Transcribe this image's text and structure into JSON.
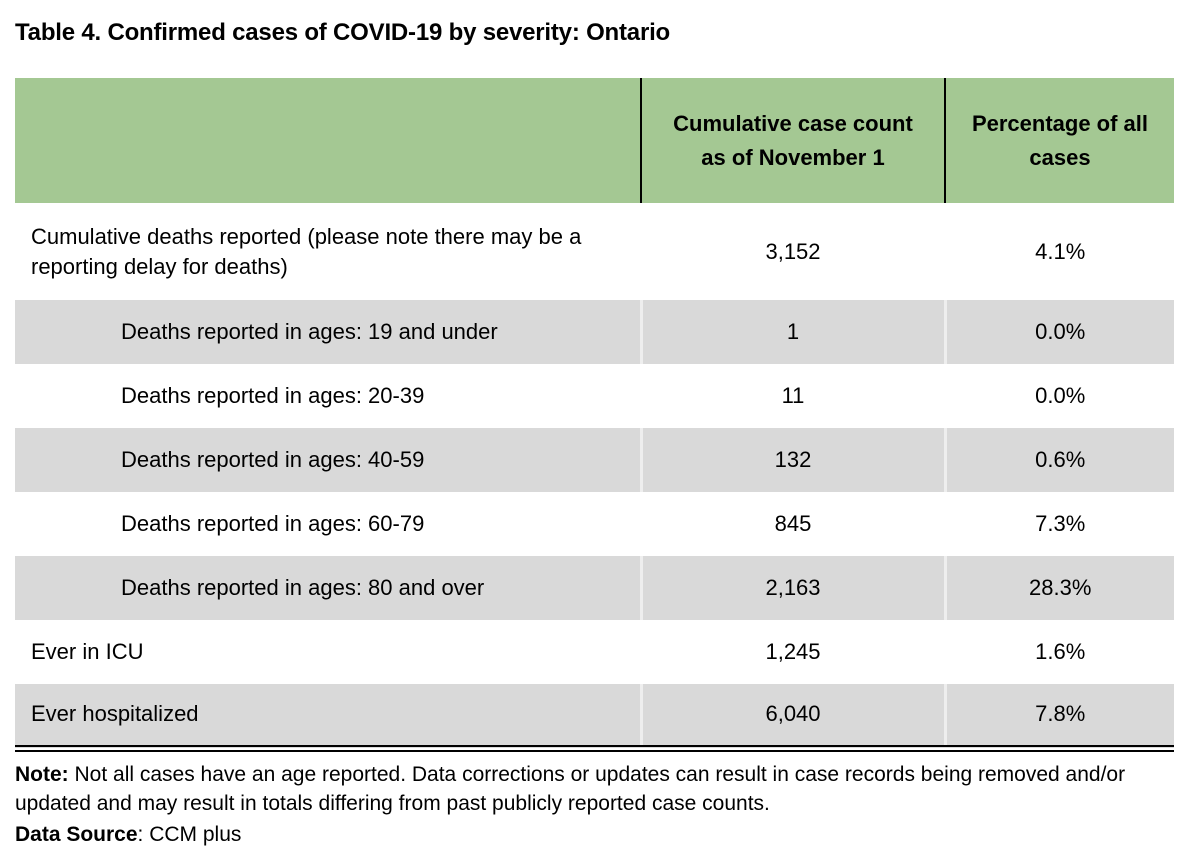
{
  "page": {
    "title": "Table 4. Confirmed cases of COVID-19 by severity: Ontario"
  },
  "table": {
    "columns": [
      "",
      "Cumulative case count as of November 1",
      "Percentage of all cases"
    ],
    "rows": [
      {
        "label": "Cumulative deaths reported (please note there may be a reporting delay for deaths)",
        "count": "3,152",
        "pct": "4.1%"
      },
      {
        "label": "Deaths reported in ages: 19 and under",
        "count": "1",
        "pct": "0.0%"
      },
      {
        "label": "Deaths reported in ages: 20-39",
        "count": "11",
        "pct": "0.0%"
      },
      {
        "label": "Deaths reported in ages: 40-59",
        "count": "132",
        "pct": "0.6%"
      },
      {
        "label": "Deaths reported in ages: 60-79",
        "count": "845",
        "pct": "7.3%"
      },
      {
        "label": "Deaths reported in ages: 80 and over",
        "count": "2,163",
        "pct": "28.3%"
      },
      {
        "label": "Ever in ICU",
        "count": "1,245",
        "pct": "1.6%"
      },
      {
        "label": "Ever hospitalized",
        "count": "6,040",
        "pct": "7.8%"
      }
    ]
  },
  "footer": {
    "note_label": "Note:",
    "note_text": " Not all cases have an age reported. Data corrections or updates can result in case records being removed and/or updated and may result in totals differing from past publicly reported case counts.",
    "source_label": "Data Source",
    "source_text": ": CCM plus"
  },
  "colors": {
    "header_bg": "#a4c893",
    "row_alt_bg": "#d9d9d9",
    "border": "#000000"
  }
}
